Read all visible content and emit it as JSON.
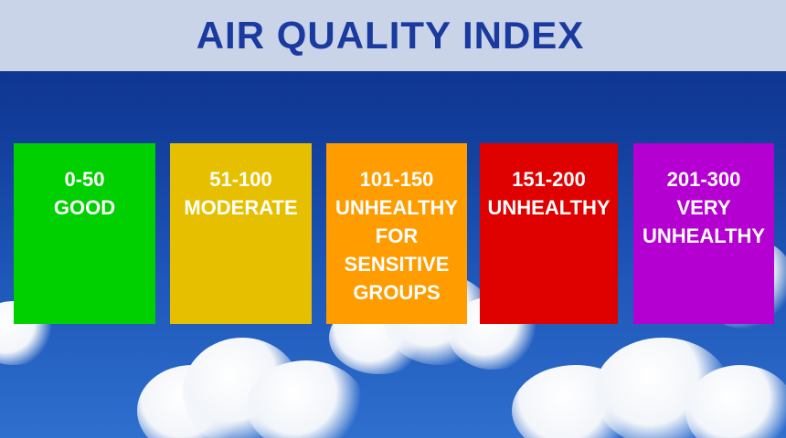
{
  "title": "AIR QUALITY INDEX",
  "colors": {
    "header_bg": "#c9d4e8",
    "title": "#1a3aa0",
    "sky_top": "#0b2f86",
    "sky_bottom": "#2f6fce",
    "card_text": "#ffffff"
  },
  "categories": [
    {
      "range": "0-50",
      "label": "GOOD",
      "color": "#00d000"
    },
    {
      "range": "51-100",
      "label": "MODERATE",
      "color": "#e6c000"
    },
    {
      "range": "101-150",
      "label": "UNHEALTHY\nFOR\nSENSITIVE\nGROUPS",
      "color": "#ff9c00"
    },
    {
      "range": "151-200",
      "label": "UNHEALTHY",
      "color": "#df0000"
    },
    {
      "range": "201-300",
      "label": "VERY\nUNHEALTHY",
      "color": "#b400d0"
    }
  ]
}
